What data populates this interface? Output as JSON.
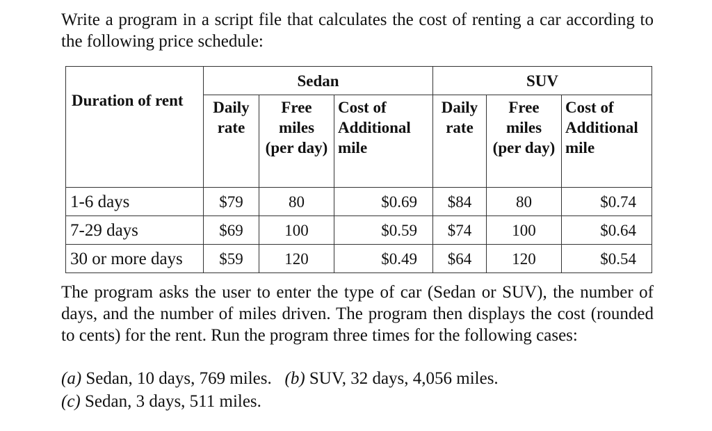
{
  "intro": "Write a program in a script file that calculates the cost of renting a car according to the following price schedule:",
  "table": {
    "duration_header": "Duration of rent",
    "groups": [
      "Sedan",
      "SUV"
    ],
    "sub_headers": {
      "daily_rate": [
        "Daily",
        "rate"
      ],
      "free_miles": [
        "Free",
        "miles",
        "(per day)"
      ],
      "additional": [
        "Cost of",
        "Additional",
        "mile"
      ]
    },
    "rows": [
      {
        "duration": "1-6 days",
        "sedan_rate": "$79",
        "sedan_free": "80",
        "sedan_add": "$0.69",
        "suv_rate": "$84",
        "suv_free": "80",
        "suv_add": "$0.74"
      },
      {
        "duration": "7-29 days",
        "sedan_rate": "$69",
        "sedan_free": "100",
        "sedan_add": "$0.59",
        "suv_rate": "$74",
        "suv_free": "100",
        "suv_add": "$0.64"
      },
      {
        "duration": "30 or more days",
        "sedan_rate": "$59",
        "sedan_free": "120",
        "sedan_add": "$0.49",
        "suv_rate": "$64",
        "suv_free": "120",
        "suv_add": "$0.54"
      }
    ]
  },
  "body": "The program asks the user to enter the type of car (Sedan or SUV), the number of days, and the number of miles driven. The program then displays the cost (rounded to cents) for the rent. Run the program three times for the following cases:",
  "cases": [
    {
      "letter": "(a)",
      "text": "Sedan, 10 days, 769 miles."
    },
    {
      "letter": "(b)",
      "text": "SUV, 32 days, 4,056 miles."
    },
    {
      "letter": "(c)",
      "text": "Sedan, 3 days, 511 miles."
    }
  ]
}
